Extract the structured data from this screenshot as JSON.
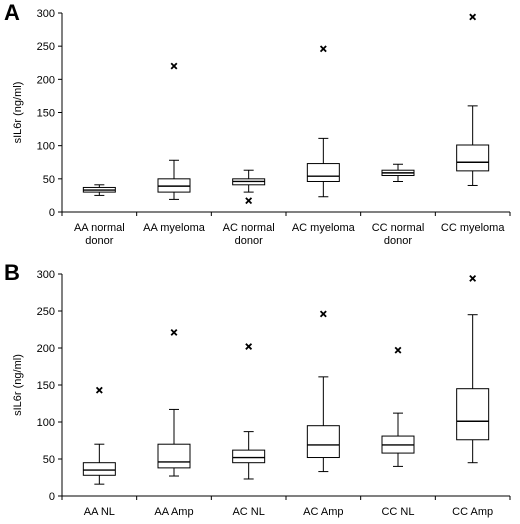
{
  "chart_data": [
    {
      "panel_label": "A",
      "type": "boxplot",
      "ylabel": "sIL6r (ng/ml)",
      "ylim": [
        0,
        300
      ],
      "yticks": [
        0,
        50,
        100,
        150,
        200,
        250,
        300
      ],
      "categories": [
        [
          "AA normal",
          "donor"
        ],
        [
          "AA myeloma"
        ],
        [
          "AC normal",
          "donor"
        ],
        [
          "AC myeloma"
        ],
        [
          "CC normal",
          "donor"
        ],
        [
          "CC myeloma"
        ]
      ],
      "boxes": [
        {
          "min": 25,
          "q1": 30,
          "median": 33,
          "q3": 37,
          "max": 41,
          "outliers": []
        },
        {
          "min": 19,
          "q1": 30,
          "median": 39,
          "q3": 50,
          "max": 78,
          "outliers": [
            220
          ]
        },
        {
          "min": 30,
          "q1": 41,
          "median": 46,
          "q3": 50,
          "max": 63,
          "outliers": [
            17
          ]
        },
        {
          "min": 23,
          "q1": 46,
          "median": 54,
          "q3": 73,
          "max": 111,
          "outliers": [
            246
          ]
        },
        {
          "min": 46,
          "q1": 55,
          "median": 59,
          "q3": 63,
          "max": 72,
          "outliers": []
        },
        {
          "min": 40,
          "q1": 62,
          "median": 75,
          "q3": 101,
          "max": 160,
          "outliers": [
            294
          ]
        }
      ],
      "grid": false,
      "legend": "none"
    },
    {
      "panel_label": "B",
      "type": "boxplot",
      "ylabel": "sIL6r (ng/ml)",
      "ylim": [
        0,
        300
      ],
      "yticks": [
        0,
        50,
        100,
        150,
        200,
        250,
        300
      ],
      "categories": [
        [
          "AA NL"
        ],
        [
          "AA Amp"
        ],
        [
          "AC NL"
        ],
        [
          "AC Amp"
        ],
        [
          "CC NL"
        ],
        [
          "CC Amp"
        ]
      ],
      "boxes": [
        {
          "min": 16,
          "q1": 28,
          "median": 35,
          "q3": 45,
          "max": 70,
          "outliers": [
            143
          ]
        },
        {
          "min": 27,
          "q1": 38,
          "median": 46,
          "q3": 70,
          "max": 117,
          "outliers": [
            221
          ]
        },
        {
          "min": 23,
          "q1": 45,
          "median": 52,
          "q3": 62,
          "max": 87,
          "outliers": [
            202
          ]
        },
        {
          "min": 33,
          "q1": 52,
          "median": 69,
          "q3": 95,
          "max": 161,
          "outliers": [
            246
          ]
        },
        {
          "min": 40,
          "q1": 58,
          "median": 69,
          "q3": 81,
          "max": 112,
          "outliers": [
            197
          ]
        },
        {
          "min": 45,
          "q1": 76,
          "median": 101,
          "q3": 145,
          "max": 245,
          "outliers": [
            294
          ]
        }
      ],
      "grid": false,
      "legend": "none"
    }
  ]
}
